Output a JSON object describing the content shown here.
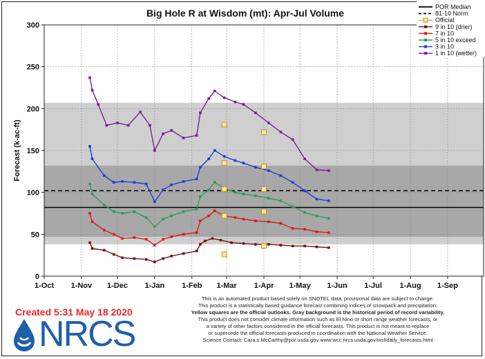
{
  "chart_data": {
    "type": "line",
    "title": "Big Hole R at Wisdom (mt): Apr-Jul Volume",
    "ylabel": "Forecast (k-ac-ft)",
    "xlabel": "",
    "ylim": [
      0,
      300
    ],
    "yticks": [
      0,
      50,
      100,
      150,
      200,
      250,
      300
    ],
    "x_months": [
      "1-Oct",
      "1-Nov",
      "1-Dec",
      "1-Jan",
      "1-Feb",
      "1-Mar",
      "1-Apr",
      "1-May",
      "1-Jun",
      "1-Jul",
      "1-Aug",
      "1-Sep"
    ],
    "grid": true,
    "legend_position": "top-right",
    "background_bands": [
      {
        "from": 38,
        "to": 207,
        "color": "#cfcfcf"
      },
      {
        "from": 47,
        "to": 132,
        "color": "#a8a8a8"
      }
    ],
    "reference_lines": [
      {
        "name": "POR Median",
        "value": 82,
        "style": "solid"
      },
      {
        "name": "81-10 Norm",
        "value": 102,
        "style": "dashed"
      }
    ],
    "official": {
      "name": "Official",
      "points": [
        {
          "date": "2020-02-28",
          "values": [
            181,
            135,
            104,
            72,
            26
          ]
        },
        {
          "date": "2020-04-01",
          "values": [
            172,
            131,
            104,
            77,
            36
          ]
        }
      ]
    },
    "series": [
      {
        "name": "9 in 10 (drier)",
        "color": "#7a1010",
        "points": [
          [
            "2019-11-08",
            40
          ],
          [
            "2019-11-10",
            33
          ],
          [
            "2019-11-20",
            31
          ],
          [
            "2019-11-28",
            26
          ],
          [
            "2019-12-05",
            22
          ],
          [
            "2019-12-15",
            21
          ],
          [
            "2019-12-25",
            20
          ],
          [
            "2020-01-01",
            17
          ],
          [
            "2020-01-08",
            21
          ],
          [
            "2020-01-15",
            24
          ],
          [
            "2020-01-25",
            27
          ],
          [
            "2020-02-05",
            30
          ],
          [
            "2020-02-08",
            38
          ],
          [
            "2020-02-12",
            42
          ],
          [
            "2020-02-18",
            45
          ],
          [
            "2020-02-25",
            43
          ],
          [
            "2020-03-05",
            40
          ],
          [
            "2020-03-15",
            39
          ],
          [
            "2020-03-25",
            38
          ],
          [
            "2020-04-05",
            38
          ],
          [
            "2020-04-15",
            37
          ],
          [
            "2020-04-25",
            36
          ],
          [
            "2020-05-05",
            36
          ],
          [
            "2020-05-15",
            35
          ],
          [
            "2020-05-25",
            34
          ]
        ]
      },
      {
        "name": "7 in 10",
        "color": "#e01818",
        "points": [
          [
            "2019-11-08",
            75
          ],
          [
            "2019-11-10",
            65
          ],
          [
            "2019-11-20",
            55
          ],
          [
            "2019-11-28",
            50
          ],
          [
            "2019-12-05",
            45
          ],
          [
            "2019-12-15",
            46
          ],
          [
            "2019-12-25",
            44
          ],
          [
            "2020-01-01",
            37
          ],
          [
            "2020-01-08",
            44
          ],
          [
            "2020-01-15",
            47
          ],
          [
            "2020-01-25",
            50
          ],
          [
            "2020-02-05",
            52
          ],
          [
            "2020-02-08",
            66
          ],
          [
            "2020-02-15",
            72
          ],
          [
            "2020-02-20",
            78
          ],
          [
            "2020-02-28",
            72
          ],
          [
            "2020-03-08",
            70
          ],
          [
            "2020-03-15",
            68
          ],
          [
            "2020-03-25",
            66
          ],
          [
            "2020-04-05",
            65
          ],
          [
            "2020-04-15",
            63
          ],
          [
            "2020-04-25",
            57
          ],
          [
            "2020-05-05",
            56
          ],
          [
            "2020-05-15",
            53
          ],
          [
            "2020-05-25",
            52
          ]
        ]
      },
      {
        "name": "5 in 10 exceed",
        "color": "#2e9a5e",
        "points": [
          [
            "2019-11-08",
            110
          ],
          [
            "2019-11-10",
            98
          ],
          [
            "2019-11-20",
            85
          ],
          [
            "2019-11-28",
            77
          ],
          [
            "2019-12-05",
            75
          ],
          [
            "2019-12-15",
            77
          ],
          [
            "2019-12-25",
            70
          ],
          [
            "2020-01-01",
            59
          ],
          [
            "2020-01-08",
            68
          ],
          [
            "2020-01-15",
            72
          ],
          [
            "2020-01-25",
            77
          ],
          [
            "2020-02-05",
            80
          ],
          [
            "2020-02-08",
            95
          ],
          [
            "2020-02-15",
            103
          ],
          [
            "2020-02-20",
            112
          ],
          [
            "2020-02-28",
            105
          ],
          [
            "2020-03-08",
            100
          ],
          [
            "2020-03-15",
            98
          ],
          [
            "2020-03-25",
            96
          ],
          [
            "2020-04-05",
            93
          ],
          [
            "2020-04-15",
            90
          ],
          [
            "2020-04-25",
            83
          ],
          [
            "2020-05-05",
            76
          ],
          [
            "2020-05-15",
            72
          ],
          [
            "2020-05-25",
            69
          ]
        ]
      },
      {
        "name": "3 in 10",
        "color": "#1f3bd6",
        "points": [
          [
            "2019-11-08",
            155
          ],
          [
            "2019-11-10",
            140
          ],
          [
            "2019-11-20",
            120
          ],
          [
            "2019-11-28",
            112
          ],
          [
            "2019-12-05",
            113
          ],
          [
            "2019-12-15",
            112
          ],
          [
            "2019-12-25",
            110
          ],
          [
            "2020-01-01",
            89
          ],
          [
            "2020-01-08",
            103
          ],
          [
            "2020-01-15",
            109
          ],
          [
            "2020-01-25",
            113
          ],
          [
            "2020-02-05",
            116
          ],
          [
            "2020-02-08",
            130
          ],
          [
            "2020-02-15",
            140
          ],
          [
            "2020-02-20",
            150
          ],
          [
            "2020-02-28",
            143
          ],
          [
            "2020-03-08",
            138
          ],
          [
            "2020-03-15",
            135
          ],
          [
            "2020-03-25",
            130
          ],
          [
            "2020-04-05",
            126
          ],
          [
            "2020-04-15",
            120
          ],
          [
            "2020-04-25",
            112
          ],
          [
            "2020-05-05",
            102
          ],
          [
            "2020-05-15",
            92
          ],
          [
            "2020-05-25",
            90
          ]
        ]
      },
      {
        "name": "1 in 10 (wetter)",
        "color": "#7a1e9a",
        "points": [
          [
            "2019-11-08",
            237
          ],
          [
            "2019-11-10",
            222
          ],
          [
            "2019-11-15",
            205
          ],
          [
            "2019-11-22",
            180
          ],
          [
            "2019-12-01",
            183
          ],
          [
            "2019-12-10",
            180
          ],
          [
            "2019-12-20",
            196
          ],
          [
            "2019-12-28",
            180
          ],
          [
            "2020-01-01",
            150
          ],
          [
            "2020-01-08",
            170
          ],
          [
            "2020-01-15",
            174
          ],
          [
            "2020-01-25",
            165
          ],
          [
            "2020-02-05",
            168
          ],
          [
            "2020-02-08",
            195
          ],
          [
            "2020-02-15",
            212
          ],
          [
            "2020-02-20",
            221
          ],
          [
            "2020-02-28",
            213
          ],
          [
            "2020-03-08",
            208
          ],
          [
            "2020-03-15",
            205
          ],
          [
            "2020-03-25",
            195
          ],
          [
            "2020-04-05",
            183
          ],
          [
            "2020-04-15",
            172
          ],
          [
            "2020-04-25",
            163
          ],
          [
            "2020-05-05",
            140
          ],
          [
            "2020-05-15",
            127
          ],
          [
            "2020-05-25",
            126
          ]
        ]
      }
    ]
  },
  "footer": {
    "created": "Created 5:31 May 18 2020",
    "logo": "NRCS",
    "logo_icon": "water-drop-icon",
    "disclaimer": [
      "This is an automated product based solely on SNOTEL data, provisional data are subject to change.",
      "This product is a statistically based guidance forecast combining indices of snowpack and precipitation.",
      "Yellow squares are the official outlooks. Gray background is the historical period of record variability.",
      "This product does not consider climate information such as El Nino or short range weather forecasts, or",
      "a variety of other factors considered in the official forecasts. This product is not meant to replace",
      "or supercede the official forecasts produced in coordination with the National Weather Service.",
      "Science Contact: Cara.s.McCarthy@por.usda.gov www.wcc.nrcs.usda.gov/wsf/daily_forecasts.html"
    ]
  }
}
